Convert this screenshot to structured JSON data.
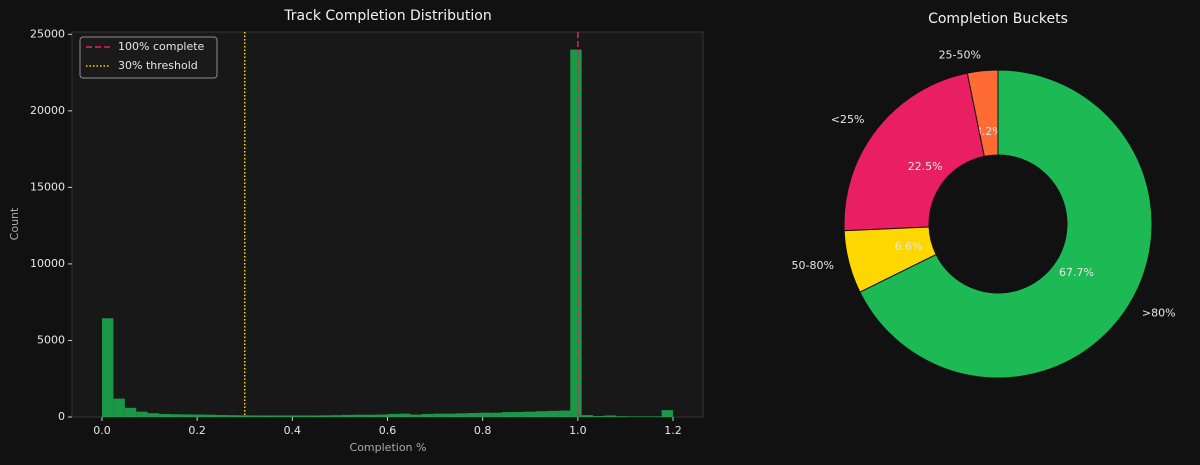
{
  "chart_data": [
    {
      "type": "histogram",
      "title": "Track Completion Distribution",
      "x_label": "Completion %",
      "y_label": "Count",
      "bins": [
        0,
        0.024,
        0.048,
        0.072,
        0.096,
        0.12,
        0.144,
        0.168,
        0.192,
        0.216,
        0.24,
        0.264,
        0.288,
        0.312,
        0.336,
        0.36,
        0.384,
        0.408,
        0.432,
        0.456,
        0.48,
        0.504,
        0.528,
        0.552,
        0.576,
        0.6,
        0.624,
        0.648,
        0.672,
        0.696,
        0.72,
        0.744,
        0.768,
        0.792,
        0.816,
        0.84,
        0.864,
        0.888,
        0.912,
        0.936,
        0.96,
        0.984,
        1.008,
        1.032,
        1.056,
        1.08,
        1.104,
        1.128,
        1.152,
        1.176,
        1.2
      ],
      "counts": [
        6450,
        1200,
        600,
        350,
        250,
        200,
        180,
        170,
        160,
        150,
        130,
        120,
        110,
        100,
        100,
        100,
        100,
        100,
        100,
        110,
        120,
        140,
        150,
        150,
        160,
        200,
        220,
        160,
        200,
        220,
        220,
        240,
        260,
        280,
        280,
        320,
        330,
        350,
        380,
        400,
        420,
        24000,
        120,
        60,
        100,
        50,
        40,
        40,
        40,
        450
      ],
      "color": "#1db954",
      "reference_lines": [
        {
          "x": 1.0,
          "label": "100% complete",
          "color": "#e91e63",
          "style": "dashed"
        },
        {
          "x": 0.3,
          "label": "30% threshold",
          "color": "#ffd700",
          "style": "dotted"
        }
      ],
      "legend": "upper left",
      "xlim": [
        -0.063,
        1.263
      ],
      "ylim": [
        0,
        25150
      ],
      "xticks": [
        {
          "value": 0,
          "label": "0.0"
        },
        0.2,
        0.4,
        0.6,
        0.8,
        {
          "value": 1,
          "label": "1.0"
        },
        1.2
      ],
      "yticks": [
        0,
        5000,
        10000,
        15000,
        20000,
        25000
      ]
    },
    {
      "type": "donut",
      "title": "Completion Buckets",
      "categories": [
        "25-50%",
        "<25%",
        "50-80%",
        ">80%"
      ],
      "values": [
        3.2,
        22.5,
        6.6,
        67.7
      ],
      "value_labels": [
        "3.2%",
        "22.5%",
        "6.6%",
        "67.7%"
      ],
      "colors": [
        "#ff6b35",
        "#e91e63",
        "#ffd700",
        "#1db954"
      ],
      "start_angle": 90
    }
  ]
}
